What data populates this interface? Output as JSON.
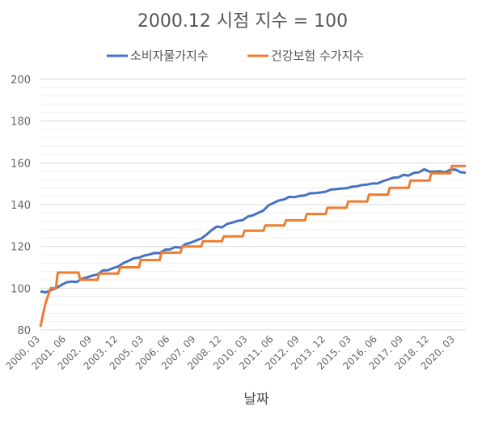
{
  "chart_data": {
    "type": "line",
    "title": "2000.12 시점 지수 = 100",
    "xlabel": "날짜",
    "ylabel": "",
    "ylim": [
      80,
      200
    ],
    "y_ticks": [
      "80",
      "100",
      "120",
      "140",
      "160",
      "180",
      "200"
    ],
    "x_tick_labels": [
      "2000. 03",
      "2001. 06",
      "2002. 09",
      "2003. 12",
      "2005. 03",
      "2006. 06",
      "2007. 09",
      "2008. 12",
      "2010. 03",
      "2011. 06",
      "2012. 09",
      "2013. 12",
      "2015. 03",
      "2016. 06",
      "2017. 09",
      "2018. 12",
      "2020. 03"
    ],
    "x_start": "2000.03",
    "x_end": "2020.09",
    "legend_position": "top",
    "grid": true,
    "series": [
      {
        "name": "소비자물가지수",
        "color": "#4472C4",
        "points": [
          [
            "2000.03",
            98.5
          ],
          [
            "2000.06",
            98.0
          ],
          [
            "2000.09",
            99.0
          ],
          [
            "2000.12",
            100.0
          ],
          [
            "2001.03",
            101.5
          ],
          [
            "2001.06",
            102.8
          ],
          [
            "2001.09",
            103.2
          ],
          [
            "2001.12",
            103.0
          ],
          [
            "2002.03",
            104.5
          ],
          [
            "2002.06",
            105.2
          ],
          [
            "2002.09",
            106.0
          ],
          [
            "2002.12",
            106.6
          ],
          [
            "2003.03",
            108.5
          ],
          [
            "2003.06",
            108.6
          ],
          [
            "2003.09",
            109.6
          ],
          [
            "2003.12",
            110.4
          ],
          [
            "2004.03",
            112.0
          ],
          [
            "2004.06",
            113.1
          ],
          [
            "2004.09",
            114.3
          ],
          [
            "2004.12",
            114.6
          ],
          [
            "2005.03",
            115.6
          ],
          [
            "2005.06",
            116.1
          ],
          [
            "2005.09",
            116.9
          ],
          [
            "2005.12",
            116.8
          ],
          [
            "2006.03",
            118.4
          ],
          [
            "2006.06",
            118.6
          ],
          [
            "2006.09",
            119.7
          ],
          [
            "2006.12",
            119.4
          ],
          [
            "2007.03",
            121.1
          ],
          [
            "2007.06",
            121.8
          ],
          [
            "2007.09",
            122.8
          ],
          [
            "2007.12",
            123.8
          ],
          [
            "2008.03",
            125.6
          ],
          [
            "2008.06",
            127.8
          ],
          [
            "2008.09",
            129.5
          ],
          [
            "2008.12",
            129.1
          ],
          [
            "2009.03",
            130.8
          ],
          [
            "2009.06",
            131.4
          ],
          [
            "2009.09",
            132.2
          ],
          [
            "2009.12",
            132.6
          ],
          [
            "2010.03",
            134.3
          ],
          [
            "2010.06",
            134.9
          ],
          [
            "2010.09",
            136.1
          ],
          [
            "2010.12",
            137.2
          ],
          [
            "2011.03",
            139.7
          ],
          [
            "2011.06",
            140.9
          ],
          [
            "2011.09",
            142.0
          ],
          [
            "2011.12",
            142.5
          ],
          [
            "2012.03",
            143.7
          ],
          [
            "2012.06",
            143.6
          ],
          [
            "2012.09",
            144.2
          ],
          [
            "2012.12",
            144.4
          ],
          [
            "2013.03",
            145.4
          ],
          [
            "2013.06",
            145.5
          ],
          [
            "2013.09",
            145.8
          ],
          [
            "2013.12",
            146.2
          ],
          [
            "2014.03",
            147.2
          ],
          [
            "2014.06",
            147.4
          ],
          [
            "2014.09",
            147.7
          ],
          [
            "2014.12",
            147.8
          ],
          [
            "2015.03",
            148.5
          ],
          [
            "2015.06",
            148.8
          ],
          [
            "2015.09",
            149.4
          ],
          [
            "2015.12",
            149.6
          ],
          [
            "2016.03",
            150.1
          ],
          [
            "2016.06",
            150.2
          ],
          [
            "2016.09",
            151.2
          ],
          [
            "2016.12",
            152.0
          ],
          [
            "2017.03",
            152.9
          ],
          [
            "2017.06",
            153.1
          ],
          [
            "2017.09",
            154.2
          ],
          [
            "2017.12",
            153.9
          ],
          [
            "2018.03",
            155.2
          ],
          [
            "2018.06",
            155.5
          ],
          [
            "2018.09",
            156.9
          ],
          [
            "2018.12",
            155.8
          ],
          [
            "2019.03",
            155.8
          ],
          [
            "2019.06",
            156.0
          ],
          [
            "2019.09",
            155.5
          ],
          [
            "2019.12",
            156.7
          ],
          [
            "2020.03",
            156.8
          ],
          [
            "2020.06",
            155.5
          ],
          [
            "2020.09",
            155.3
          ]
        ]
      },
      {
        "name": "건강보험 수가지수",
        "color": "#ED7D31",
        "points": [
          [
            "2000.03",
            81.5
          ],
          [
            "2000.04",
            85.5
          ],
          [
            "2000.06",
            93.0
          ],
          [
            "2000.09",
            100.0
          ],
          [
            "2000.12",
            100.0
          ],
          [
            "2001.01",
            107.5
          ],
          [
            "2002.01",
            107.5
          ],
          [
            "2002.02",
            104.0
          ],
          [
            "2002.12",
            104.0
          ],
          [
            "2003.01",
            107.0
          ],
          [
            "2003.12",
            107.0
          ],
          [
            "2004.01",
            110.0
          ],
          [
            "2004.12",
            110.0
          ],
          [
            "2005.01",
            113.5
          ],
          [
            "2005.12",
            113.5
          ],
          [
            "2006.01",
            117.0
          ],
          [
            "2006.12",
            117.0
          ],
          [
            "2007.01",
            120.0
          ],
          [
            "2007.12",
            120.0
          ],
          [
            "2008.01",
            122.5
          ],
          [
            "2008.12",
            122.5
          ],
          [
            "2009.01",
            124.8
          ],
          [
            "2009.12",
            124.8
          ],
          [
            "2010.01",
            127.5
          ],
          [
            "2010.12",
            127.5
          ],
          [
            "2011.01",
            130.0
          ],
          [
            "2011.12",
            130.0
          ],
          [
            "2012.01",
            132.5
          ],
          [
            "2012.12",
            132.5
          ],
          [
            "2013.01",
            135.5
          ],
          [
            "2013.12",
            135.5
          ],
          [
            "2014.01",
            138.5
          ],
          [
            "2014.12",
            138.5
          ],
          [
            "2015.01",
            141.5
          ],
          [
            "2015.12",
            141.5
          ],
          [
            "2016.01",
            144.8
          ],
          [
            "2016.12",
            144.8
          ],
          [
            "2017.01",
            148.0
          ],
          [
            "2017.12",
            148.0
          ],
          [
            "2018.01",
            151.5
          ],
          [
            "2018.12",
            151.5
          ],
          [
            "2019.01",
            155.0
          ],
          [
            "2019.12",
            155.0
          ],
          [
            "2020.01",
            158.5
          ],
          [
            "2020.09",
            158.5
          ]
        ]
      }
    ]
  }
}
